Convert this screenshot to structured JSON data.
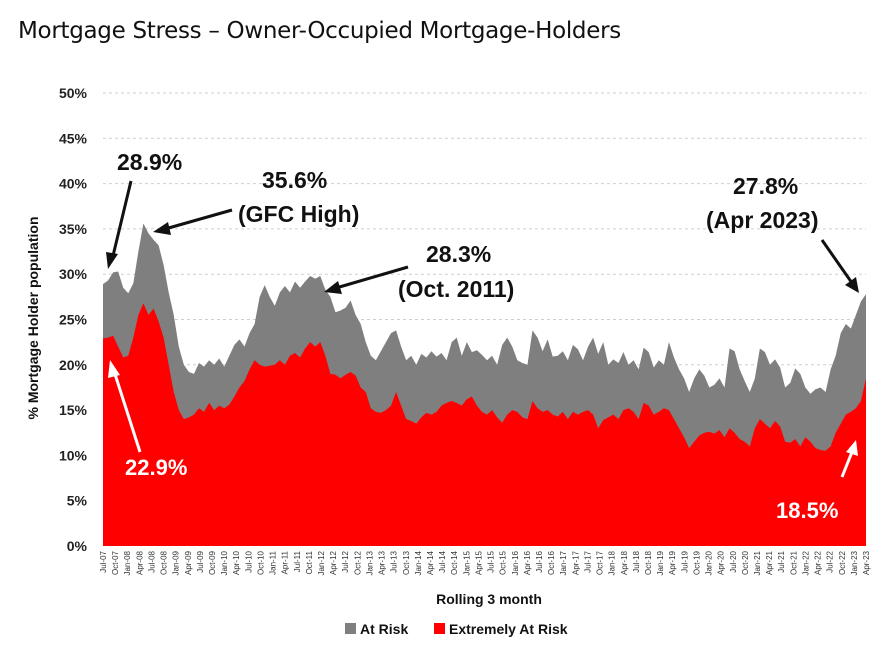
{
  "title": "Mortgage Stress – Owner-Occupied Mortgage-Holders",
  "chart_data": {
    "type": "area",
    "title": "Mortgage Stress – Owner-Occupied Mortgage-Holders",
    "xlabel": "Rolling 3 month",
    "ylabel": "% Mortgage Holder population",
    "ylim": [
      0,
      50
    ],
    "yticks": [
      "0%",
      "5%",
      "10%",
      "15%",
      "20%",
      "25%",
      "30%",
      "35%",
      "40%",
      "45%",
      "50%"
    ],
    "x_start": "Jul-07",
    "x_end": "Apr-23",
    "x_tick_labels": [
      "Jul-07",
      "Oct-07",
      "Jan-08",
      "Apr-08",
      "Jul-08",
      "Oct-08",
      "Jan-09",
      "Apr-09",
      "Jul-09",
      "Oct-09",
      "Jan-10",
      "Apr-10",
      "Jul-10",
      "Oct-10",
      "Jan-11",
      "Apr-11",
      "Jul-11",
      "Oct-11",
      "Jan-12",
      "Apr-12",
      "Jul-12",
      "Oct-12",
      "Jan-13",
      "Apr-13",
      "Jul-13",
      "Oct-13",
      "Jan-14",
      "Apr-14",
      "Jul-14",
      "Oct-14",
      "Jan-15",
      "Apr-15",
      "Jul-15",
      "Oct-15",
      "Jan-16",
      "Apr-16",
      "Jul-16",
      "Oct-16",
      "Jan-17",
      "Apr-17",
      "Jul-17",
      "Oct-17",
      "Jan-18",
      "Apr-18",
      "Jul-18",
      "Oct-18",
      "Jan-19",
      "Apr-19",
      "Jul-19",
      "Oct-19",
      "Jan-20",
      "Apr-20",
      "Jul-20",
      "Oct-20",
      "Jan-21",
      "Apr-21",
      "Jul-21",
      "Oct-21",
      "Jan-22",
      "Apr-22",
      "Jul-22",
      "Oct-22",
      "Jan-23",
      "Apr-23"
    ],
    "grid": true,
    "legend_position": "bottom",
    "stacked": false,
    "series": [
      {
        "name": "At Risk",
        "color": "#7f7f7f",
        "values": [
          28.9,
          29.3,
          30.2,
          30.3,
          28.5,
          27.9,
          29.0,
          32.5,
          35.6,
          34.5,
          33.8,
          33.2,
          31.0,
          28.0,
          25.5,
          22.0,
          20.0,
          19.2,
          19.0,
          20.2,
          19.8,
          20.5,
          20.0,
          20.7,
          19.8,
          21.0,
          22.2,
          22.8,
          22.0,
          23.5,
          24.5,
          27.5,
          28.8,
          27.5,
          26.5,
          28.0,
          28.7,
          28.0,
          29.2,
          28.5,
          29.2,
          29.8,
          29.5,
          29.8,
          28.3,
          27.5,
          25.8,
          26.0,
          26.3,
          27.1,
          25.5,
          24.5,
          22.5,
          21.0,
          20.5,
          21.5,
          22.5,
          23.5,
          23.8,
          22.0,
          20.5,
          21.0,
          20.0,
          21.2,
          20.8,
          21.5,
          20.9,
          21.3,
          20.5,
          22.5,
          23.0,
          21.0,
          22.5,
          21.4,
          21.6,
          21.1,
          20.5,
          21.0,
          20.0,
          22.2,
          23.0,
          22.0,
          20.5,
          20.2,
          20.0,
          23.8,
          23.0,
          21.5,
          22.8,
          20.9,
          21.0,
          21.5,
          20.5,
          22.2,
          21.7,
          20.5,
          22.0,
          23.0,
          21.2,
          22.5,
          20.0,
          20.6,
          20.2,
          21.4,
          20.0,
          20.5,
          19.5,
          21.9,
          21.4,
          19.7,
          20.5,
          20.0,
          22.5,
          20.8,
          19.5,
          18.5,
          17.0,
          18.5,
          19.5,
          18.8,
          17.5,
          17.8,
          18.5,
          17.5,
          21.8,
          21.5,
          19.5,
          18.2,
          17.0,
          18.5,
          21.8,
          21.4,
          20.0,
          20.6,
          19.7,
          17.5,
          18.0,
          19.6,
          19.0,
          17.5,
          16.8,
          17.3,
          17.5,
          17.0,
          19.5,
          21.0,
          23.5,
          24.5,
          24.0,
          25.5,
          27.0,
          27.8
        ]
      },
      {
        "name": "Extremely At Risk",
        "color": "#ff0000",
        "values": [
          22.9,
          23.0,
          23.2,
          22.0,
          20.8,
          21.0,
          23.0,
          25.5,
          26.8,
          25.5,
          26.2,
          24.8,
          23.0,
          20.0,
          17.0,
          15.0,
          14.0,
          14.2,
          14.5,
          15.2,
          14.8,
          15.8,
          15.0,
          15.5,
          15.2,
          15.6,
          16.5,
          17.5,
          18.2,
          19.5,
          20.5,
          20.0,
          19.8,
          19.9,
          20.0,
          20.5,
          20.0,
          21.0,
          21.3,
          20.8,
          21.8,
          22.5,
          22.0,
          22.5,
          21.0,
          19.0,
          18.9,
          18.5,
          18.9,
          19.2,
          18.8,
          17.5,
          17.0,
          15.2,
          14.8,
          14.7,
          15.0,
          15.5,
          17.0,
          15.5,
          14.0,
          13.8,
          13.5,
          14.2,
          14.7,
          14.5,
          14.8,
          15.5,
          15.8,
          16.0,
          15.8,
          15.5,
          16.2,
          16.5,
          15.5,
          14.8,
          14.5,
          15.0,
          14.2,
          13.6,
          14.5,
          15.0,
          14.8,
          14.2,
          14.0,
          16.0,
          15.2,
          14.8,
          15.0,
          14.5,
          14.3,
          14.8,
          14.0,
          14.8,
          14.5,
          14.8,
          15.0,
          14.5,
          13.0,
          13.9,
          14.2,
          14.5,
          14.0,
          15.0,
          15.2,
          14.8,
          14.0,
          15.8,
          15.5,
          14.5,
          14.8,
          15.2,
          15.0,
          14.0,
          13.0,
          12.0,
          10.8,
          11.5,
          12.2,
          12.5,
          12.6,
          12.4,
          12.8,
          12.0,
          13.0,
          12.5,
          11.8,
          11.5,
          11.0,
          13.0,
          14.0,
          13.5,
          13.0,
          13.8,
          13.2,
          11.5,
          11.4,
          11.8,
          11.0,
          12.0,
          11.5,
          10.8,
          10.6,
          10.5,
          11.0,
          12.5,
          13.5,
          14.5,
          14.8,
          15.2,
          16.0,
          18.5
        ]
      }
    ],
    "annotations": [
      {
        "text": "28.9%",
        "color": "#111111"
      },
      {
        "text": "35.6%",
        "color": "#111111"
      },
      {
        "text": "(GFC High)",
        "color": "#111111"
      },
      {
        "text": "28.3%",
        "color": "#111111"
      },
      {
        "text": "(Oct. 2011)",
        "color": "#111111"
      },
      {
        "text": "27.8%",
        "color": "#111111"
      },
      {
        "text": "(Apr 2023)",
        "color": "#111111"
      },
      {
        "text": "22.9%",
        "color": "#ffffff"
      },
      {
        "text": "18.5%",
        "color": "#ffffff"
      }
    ]
  }
}
